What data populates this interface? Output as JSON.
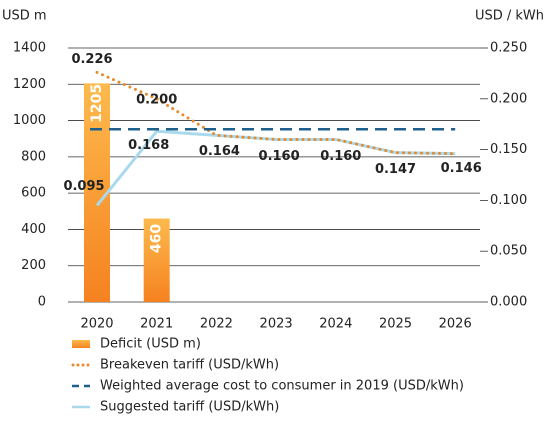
{
  "chart_data": {
    "type": "bar",
    "y_label": "USD m",
    "y2_label": "USD / kWh",
    "categories": [
      "2020",
      "2021",
      "2022",
      "2023",
      "2024",
      "2025",
      "2026"
    ],
    "ylim": [
      0,
      1400
    ],
    "yticks": [
      0,
      200,
      400,
      600,
      800,
      1000,
      1200,
      1400
    ],
    "y2lim": [
      0,
      0.25
    ],
    "y2ticks": [
      {
        "value": 0,
        "label": "0.000"
      },
      {
        "value": 0.05,
        "label": "0.050"
      },
      {
        "value": 0.1,
        "label": "0.100"
      },
      {
        "value": 0.15,
        "label": "0.150"
      },
      {
        "value": 0.2,
        "label": "0.200"
      },
      {
        "value": 0.25,
        "label": "0.250"
      }
    ],
    "grid": true,
    "series": [
      {
        "name": "Deficit (USD m)",
        "type": "bar",
        "color": "#f7941d",
        "values": [
          1205,
          460,
          null,
          null,
          null,
          null,
          null
        ]
      },
      {
        "name": "Breakeven tariff (USD/kWh)",
        "type": "line",
        "style": "dotted",
        "axis": "y2",
        "color": "#e8892a",
        "values": [
          0.226,
          0.2,
          0.164,
          0.16,
          0.16,
          0.147,
          0.146
        ],
        "value_labels": [
          "0.226",
          "0.200",
          "0.164",
          "0.160",
          "0.160",
          "0.147",
          "0.146"
        ]
      },
      {
        "name": "Weighted average cost to consumer in 2019 (USD/kWh)",
        "type": "line",
        "style": "dashed",
        "axis": "y2",
        "color": "#1f5f8b",
        "values": [
          0.17,
          0.17,
          0.17,
          0.17,
          0.17,
          0.17,
          0.17
        ]
      },
      {
        "name": "Suggested tariff (USD/kWh)",
        "type": "line",
        "style": "solid",
        "axis": "y2",
        "color": "#a9d9ec",
        "values": [
          0.095,
          0.168,
          0.164,
          0.16,
          0.16,
          0.147,
          0.146
        ],
        "value_labels": [
          "0.095",
          "0.168",
          null,
          null,
          null,
          null,
          null
        ]
      }
    ]
  }
}
